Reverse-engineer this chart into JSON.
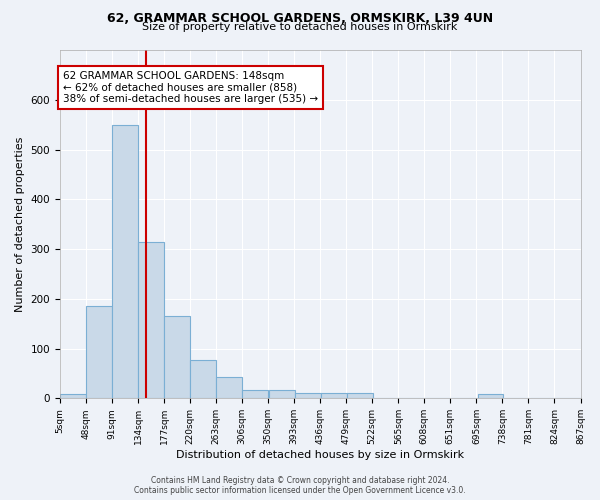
{
  "title1": "62, GRAMMAR SCHOOL GARDENS, ORMSKIRK, L39 4UN",
  "title2": "Size of property relative to detached houses in Ormskirk",
  "xlabel": "Distribution of detached houses by size in Ormskirk",
  "ylabel": "Number of detached properties",
  "bar_left_edges": [
    5,
    48,
    91,
    134,
    177,
    220,
    263,
    306,
    350,
    393,
    436,
    479,
    522,
    565,
    608,
    651,
    695,
    738,
    781,
    824
  ],
  "bar_heights": [
    8,
    185,
    550,
    315,
    165,
    78,
    43,
    17,
    17,
    10,
    11,
    10,
    0,
    0,
    0,
    0,
    8,
    0,
    0,
    0
  ],
  "bin_width": 43,
  "bar_color": "#c9d9e8",
  "bar_edge_color": "#7bafd4",
  "reference_line_x": 148,
  "reference_line_color": "#cc0000",
  "annotation_text": "62 GRAMMAR SCHOOL GARDENS: 148sqm\n← 62% of detached houses are smaller (858)\n38% of semi-detached houses are larger (535) →",
  "annotation_box_color": "white",
  "annotation_box_edge_color": "#cc0000",
  "ylim": [
    0,
    700
  ],
  "yticks": [
    0,
    100,
    200,
    300,
    400,
    500,
    600,
    700
  ],
  "xtick_labels": [
    "5sqm",
    "48sqm",
    "91sqm",
    "134sqm",
    "177sqm",
    "220sqm",
    "263sqm",
    "306sqm",
    "350sqm",
    "393sqm",
    "436sqm",
    "479sqm",
    "522sqm",
    "565sqm",
    "608sqm",
    "651sqm",
    "695sqm",
    "738sqm",
    "781sqm",
    "824sqm",
    "867sqm"
  ],
  "footer_text": "Contains HM Land Registry data © Crown copyright and database right 2024.\nContains public sector information licensed under the Open Government Licence v3.0.",
  "bg_color": "#eef2f8",
  "grid_color": "white"
}
